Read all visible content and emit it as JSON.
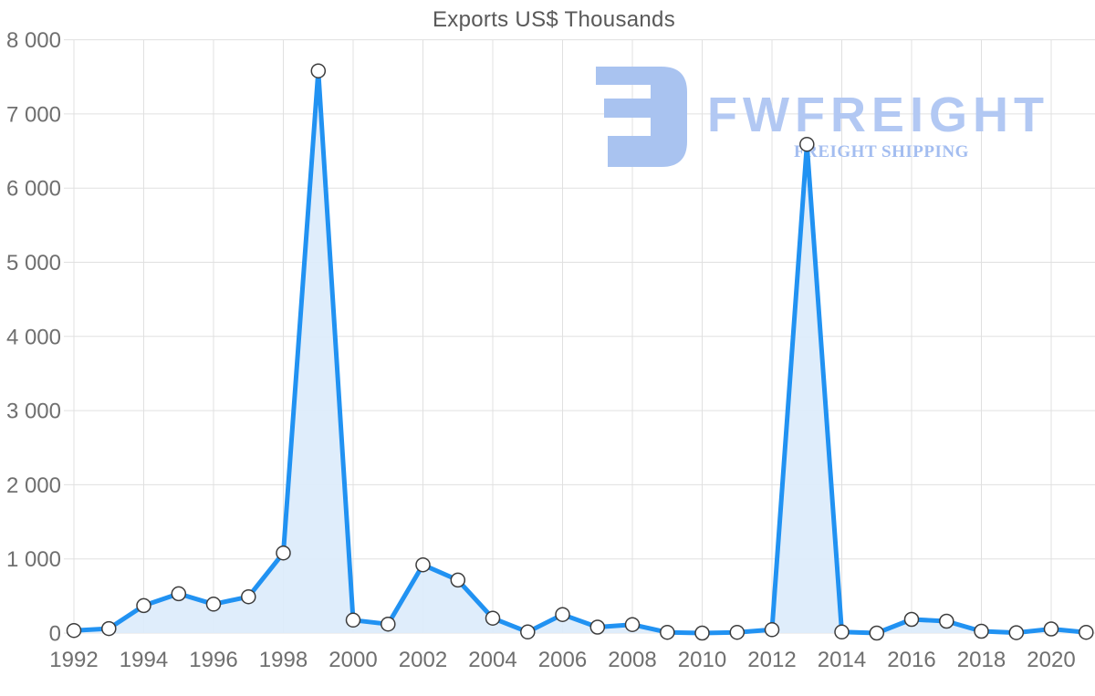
{
  "title": "Exports US$ Thousands",
  "watermark": {
    "brand": "FWFREIGHT",
    "tagline": "FREIGHT SHIPPING",
    "icon": "fwfreight-logo-icon",
    "icon_color": "#a9c3f0",
    "brand_color": "#b2c8f3",
    "tagline_color": "#a3bdf0"
  },
  "colors": {
    "line": "#2192f2",
    "fill": "#dcebfb",
    "marker_fill": "#ffffff",
    "marker_stroke": "#3c3c3c",
    "grid": "#e0e0e0",
    "axis_text": "#6f6f6f"
  },
  "chart_data": {
    "type": "area",
    "title": "Exports US$ Thousands",
    "xlabel": "",
    "ylabel": "",
    "x": [
      1992,
      1993,
      1994,
      1995,
      1996,
      1997,
      1998,
      1999,
      2000,
      2001,
      2002,
      2003,
      2004,
      2005,
      2006,
      2007,
      2008,
      2009,
      2010,
      2011,
      2012,
      2013,
      2014,
      2015,
      2016,
      2017,
      2018,
      2019,
      2020,
      2021
    ],
    "series": [
      {
        "name": "Exports US$ Thousands",
        "values": [
          35,
          60,
          370,
          530,
          390,
          490,
          1080,
          7580,
          175,
          120,
          920,
          715,
          200,
          15,
          250,
          80,
          115,
          10,
          0,
          10,
          45,
          6590,
          15,
          0,
          185,
          160,
          25,
          5,
          55,
          10
        ]
      }
    ],
    "ylim": [
      0,
      8000
    ],
    "y_ticks": [
      0,
      1000,
      2000,
      3000,
      4000,
      5000,
      6000,
      7000,
      8000
    ],
    "y_tick_labels": [
      "0",
      "1 000",
      "2 000",
      "3 000",
      "4 000",
      "5 000",
      "6 000",
      "7 000",
      "8 000"
    ],
    "x_tick_years": [
      1992,
      1994,
      1996,
      1998,
      2000,
      2002,
      2004,
      2006,
      2008,
      2010,
      2012,
      2014,
      2016,
      2018,
      2020
    ],
    "x_tick_labels": [
      "1992",
      "1994",
      "1996",
      "1998",
      "2000",
      "2002",
      "2004",
      "2006",
      "2008",
      "2010",
      "2012",
      "2014",
      "2016",
      "2018",
      "2020"
    ],
    "grid": true,
    "legend": false,
    "marker": "circle"
  }
}
